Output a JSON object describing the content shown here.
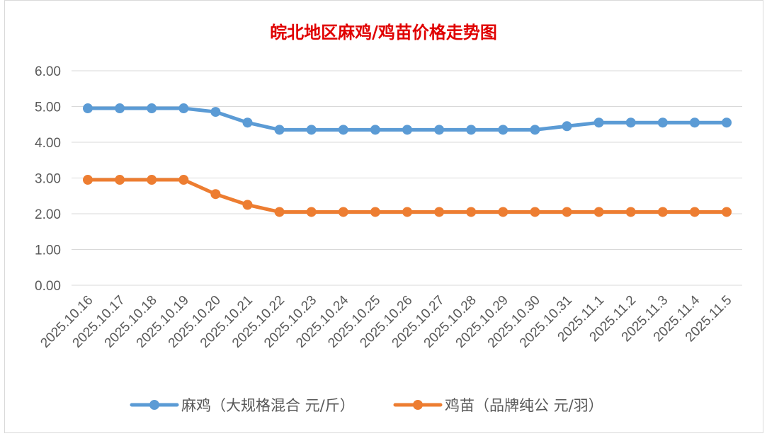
{
  "chart_data": {
    "type": "line",
    "title": "皖北地区麻鸡/鸡苗价格走势图",
    "categories": [
      "2025.10.16",
      "2025.10.17",
      "2025.10.18",
      "2025.10.19",
      "2025.10.20",
      "2025.10.21",
      "2025.10.22",
      "2025.10.23",
      "2025.10.24",
      "2025.10.25",
      "2025.10.26",
      "2025.10.27",
      "2025.10.28",
      "2025.10.29",
      "2025.10.30",
      "2025.10.31",
      "2025.11.1",
      "2025.11.2",
      "2025.11.3",
      "2025.11.4",
      "2025.11.5"
    ],
    "yticks": [
      "0.00",
      "1.00",
      "2.00",
      "3.00",
      "4.00",
      "5.00",
      "6.00"
    ],
    "ylim": [
      0,
      6
    ],
    "grid": true,
    "legend_position": "bottom",
    "series": [
      {
        "name": "麻鸡（大规格混合 元/斤）",
        "color": "#5b9bd5",
        "values": [
          4.95,
          4.95,
          4.95,
          4.95,
          4.85,
          4.55,
          4.35,
          4.35,
          4.35,
          4.35,
          4.35,
          4.35,
          4.35,
          4.35,
          4.35,
          4.45,
          4.55,
          4.55,
          4.55,
          4.55,
          4.55
        ]
      },
      {
        "name": "鸡苗（品牌纯公 元/羽）",
        "color": "#ed7d31",
        "values": [
          2.95,
          2.95,
          2.95,
          2.95,
          2.55,
          2.25,
          2.05,
          2.05,
          2.05,
          2.05,
          2.05,
          2.05,
          2.05,
          2.05,
          2.05,
          2.05,
          2.05,
          2.05,
          2.05,
          2.05,
          2.05
        ]
      }
    ]
  }
}
